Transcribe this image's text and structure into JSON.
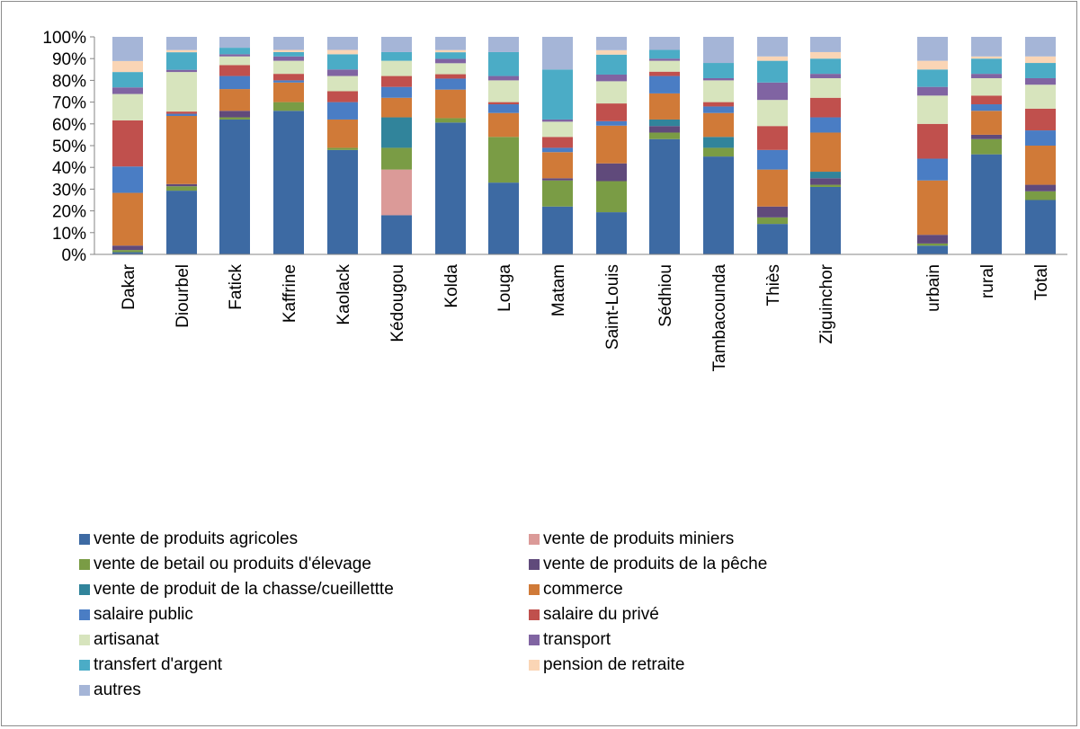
{
  "chart_data": {
    "type": "bar",
    "stacked": true,
    "percent": true,
    "y_ticks": [
      "0%",
      "10%",
      "20%",
      "30%",
      "40%",
      "50%",
      "60%",
      "70%",
      "80%",
      "90%",
      "100%"
    ],
    "ylim": [
      0,
      100
    ],
    "grid": false,
    "legend_position": "bottom",
    "categories": [
      "Dakar",
      "Diourbel",
      "Fatick",
      "Kaffrine",
      "Kaolack",
      "Kédougou",
      "Kolda",
      "Louga",
      "Matam",
      "Saint-Louis",
      "Sédhiou",
      "Tambacounda",
      "Thiès",
      "Ziguinchor",
      "urbain",
      "rural",
      "Total"
    ],
    "gap_before": [
      "urbain"
    ],
    "series": [
      {
        "name": "vente de produits agricoles",
        "color": "#3d6aa3",
        "values": [
          1,
          29,
          62,
          66,
          48,
          18,
          60,
          33,
          22,
          19,
          53,
          45,
          14,
          31,
          4,
          46,
          25
        ]
      },
      {
        "name": "vente de produits miniers",
        "color": "#db9a98",
        "values": [
          0,
          0,
          0,
          0,
          0,
          21,
          0,
          0,
          0,
          0,
          0,
          0,
          0,
          0,
          0,
          0,
          0
        ]
      },
      {
        "name": "vente de betail ou produits d'élevage",
        "color": "#7a9c45",
        "values": [
          1,
          2,
          1,
          4,
          1,
          10,
          2,
          21,
          12,
          14,
          3,
          4,
          3,
          1,
          1,
          7,
          4
        ]
      },
      {
        "name": "vente de produits de la pêche",
        "color": "#604a7b",
        "values": [
          2,
          1,
          3,
          0,
          0,
          0,
          0,
          0,
          1,
          8,
          3,
          0,
          5,
          3,
          4,
          2,
          3
        ]
      },
      {
        "name": "vente de produit de la chasse/cueillettte",
        "color": "#31849b",
        "values": [
          0,
          0,
          0,
          0,
          0,
          14,
          0,
          0,
          0,
          0,
          3,
          5,
          0,
          3,
          0,
          0,
          0
        ]
      },
      {
        "name": "commerce",
        "color": "#d07a38",
        "values": [
          24,
          31,
          10,
          9,
          13,
          9,
          13,
          11,
          12,
          17,
          12,
          11,
          17,
          18,
          25,
          11,
          18
        ]
      },
      {
        "name": "salaire public",
        "color": "#4a7dc4",
        "values": [
          12,
          1,
          6,
          1,
          8,
          5,
          5,
          4,
          2,
          2,
          8,
          3,
          9,
          7,
          10,
          3,
          7
        ]
      },
      {
        "name": "salaire du privé",
        "color": "#c0504d",
        "values": [
          21,
          1,
          5,
          3,
          5,
          5,
          2,
          1,
          5,
          8,
          2,
          2,
          11,
          9,
          16,
          4,
          10
        ]
      },
      {
        "name": "artisanat",
        "color": "#d7e4bd",
        "values": [
          12,
          18,
          4,
          6,
          7,
          7,
          5,
          10,
          7,
          10,
          5,
          10,
          12,
          9,
          13,
          8,
          11
        ]
      },
      {
        "name": "transport",
        "color": "#8064a2",
        "values": [
          3,
          1,
          1,
          2,
          3,
          0,
          2,
          2,
          1,
          3,
          1,
          1,
          8,
          2,
          4,
          2,
          3
        ]
      },
      {
        "name": "transfert d'argent",
        "color": "#4bacc6",
        "values": [
          7,
          8,
          3,
          2,
          7,
          4,
          3,
          11,
          23,
          9,
          4,
          7,
          10,
          7,
          8,
          7,
          7
        ]
      },
      {
        "name": "pension de retraite",
        "color": "#fad5b5",
        "values": [
          5,
          1,
          0,
          1,
          2,
          0,
          1,
          0,
          0,
          2,
          0,
          0,
          2,
          3,
          4,
          1,
          3
        ]
      },
      {
        "name": "autres",
        "color": "#a5b5d7",
        "values": [
          11,
          6,
          5,
          6,
          6,
          7,
          6,
          7,
          15,
          6,
          6,
          12,
          9,
          7,
          11,
          9,
          9
        ]
      }
    ]
  }
}
